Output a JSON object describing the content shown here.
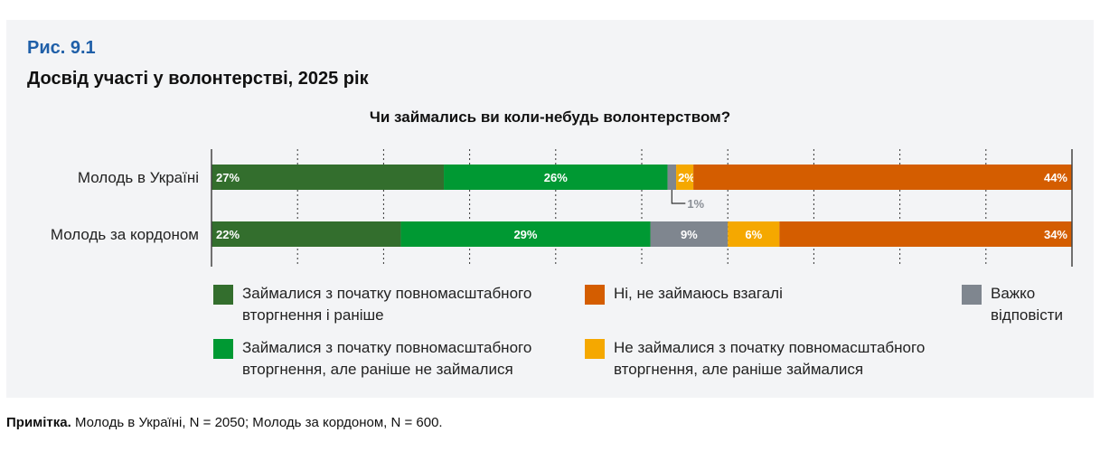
{
  "figure_label": "Рис. 9.1",
  "figure_title": "Досвід участі у волонтерстві, 2025 рік",
  "note": {
    "bold": "Примітка.",
    "text": " Молодь в Україні, N = 2050; Молодь за кордоном, N = 600."
  },
  "chart_data": {
    "type": "bar",
    "orientation": "horizontal-stacked-100",
    "title": "Чи займались ви коли-небудь волонтерством?",
    "categories": [
      "Молодь в Україні",
      "Молодь за кордоном"
    ],
    "xlim": [
      0,
      100
    ],
    "grid": true,
    "legend_position": "bottom",
    "series": [
      {
        "name": "Займалися з початку повномасштабного вторгнення і раніше",
        "color": "#336e2d",
        "values": [
          27,
          22
        ],
        "labels": [
          "27%",
          "22%"
        ]
      },
      {
        "name": "Займалися з початку повномасштабного вторгнення, але раніше не займалися",
        "color": "#009933",
        "values": [
          26,
          29
        ],
        "labels": [
          "26%",
          "29%"
        ]
      },
      {
        "name": "Важко відповісти",
        "color": "#7f868f",
        "values": [
          1,
          9
        ],
        "labels": [
          "1%",
          "9%"
        ]
      },
      {
        "name": "Не займалися з початку повномасштабного вторгнення, але раніше займалися",
        "color": "#f5a800",
        "values": [
          2,
          6
        ],
        "labels": [
          "2%",
          "6%"
        ]
      },
      {
        "name": "Ні, не займаюсь взагалі",
        "color": "#d45d00",
        "values": [
          44,
          34
        ],
        "labels": [
          "44%",
          "34%"
        ]
      }
    ],
    "legend_lines": {
      "s0": [
        "Займалися з початку повномасштабного",
        "вторгнення і раніше"
      ],
      "s1": [
        "Займалися з початку повномасштабного",
        "вторгнення, але раніше не займалися"
      ],
      "s2": [
        "Важко",
        "відповісти"
      ],
      "s3": [
        "Не займалися з початку повномасштабного",
        "вторгнення, але раніше займалися"
      ],
      "s4": [
        "Ні, не займаюсь взагалі"
      ]
    }
  }
}
